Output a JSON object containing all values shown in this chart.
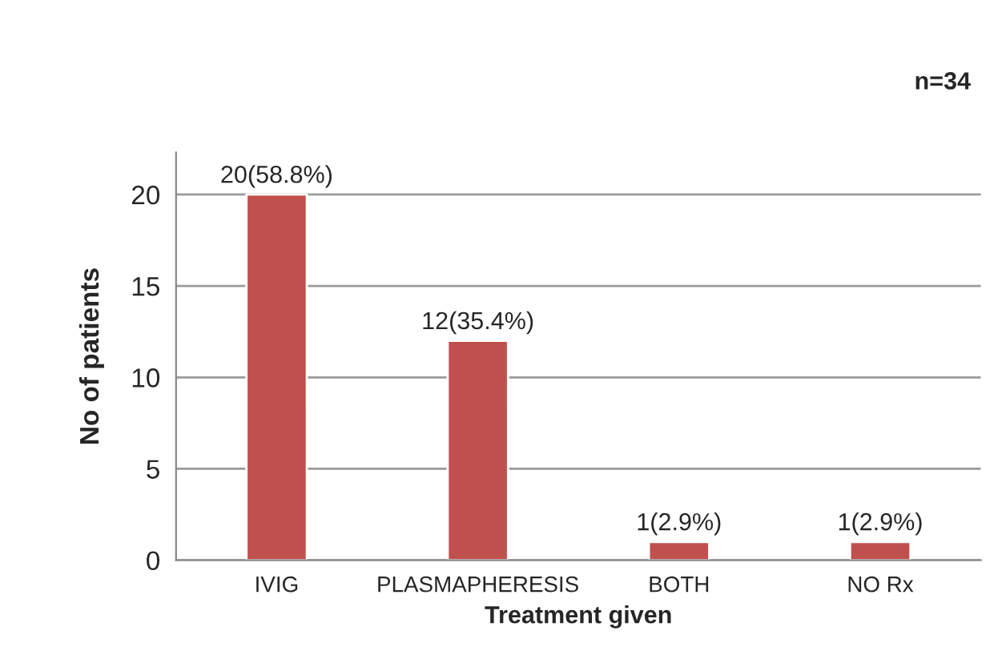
{
  "chart_data": {
    "type": "bar",
    "categories": [
      "IVIG",
      "PLASMAPHERESIS",
      "BOTH",
      "NO Rx"
    ],
    "values": [
      20,
      12,
      1,
      1
    ],
    "value_labels": [
      "20(58.8%)",
      "12(35.4%)",
      "1(2.9%)",
      "1(2.9%)"
    ],
    "color": "#c0504d",
    "xlabel": "Treatment given",
    "ylabel": "No of patients",
    "annotations": [
      "n=34"
    ],
    "ylim": [
      0,
      22.3
    ],
    "yticks": [
      0,
      5,
      10,
      15,
      20
    ],
    "grid": "y",
    "legend": false
  }
}
